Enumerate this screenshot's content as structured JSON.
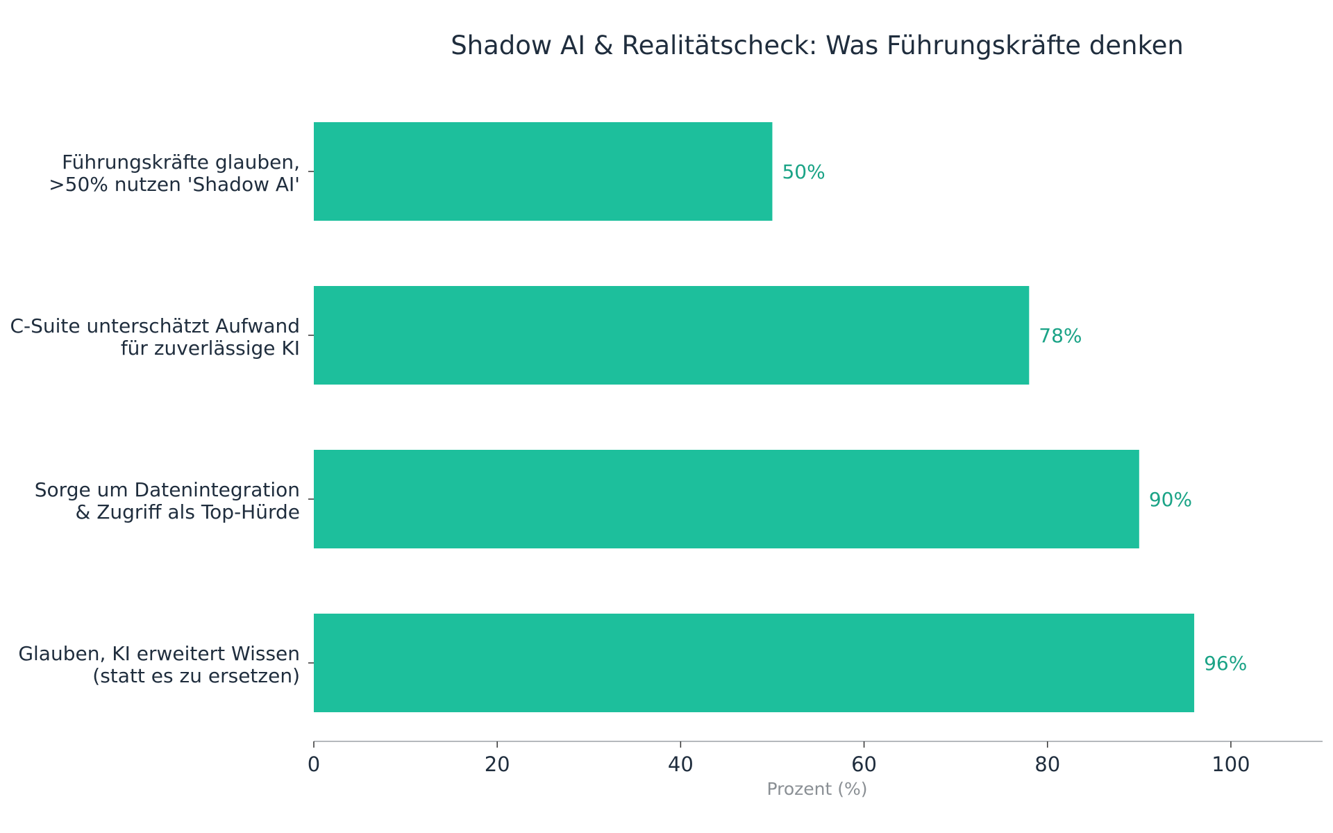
{
  "chart_data": {
    "type": "bar",
    "orientation": "horizontal",
    "title": "Shadow AI & Realitätscheck: Was Führungskräfte denken",
    "xlabel": "Prozent (%)",
    "ylabel": "",
    "xlim": [
      0,
      110
    ],
    "xticks": [
      0,
      20,
      40,
      60,
      80,
      100
    ],
    "grid": false,
    "categories": [
      [
        "Führungskräfte glauben,",
        ">50% nutzen 'Shadow AI'"
      ],
      [
        "C-Suite unterschätzt Aufwand",
        "für zuverlässige KI"
      ],
      [
        "Sorge um Datenintegration",
        "& Zugriff als Top-Hürde"
      ],
      [
        "Glauben, KI erweitert Wissen",
        "(statt es zu ersetzen)"
      ]
    ],
    "values": [
      50,
      78,
      90,
      96
    ],
    "value_labels": [
      "50%",
      "78%",
      "90%",
      "96%"
    ],
    "colors": {
      "bar": "#1dbf9c",
      "value_label": "#1aa386",
      "axis": "#b5b9bd",
      "text": "#1f2d3d",
      "axis_title": "#8a8f94"
    }
  }
}
